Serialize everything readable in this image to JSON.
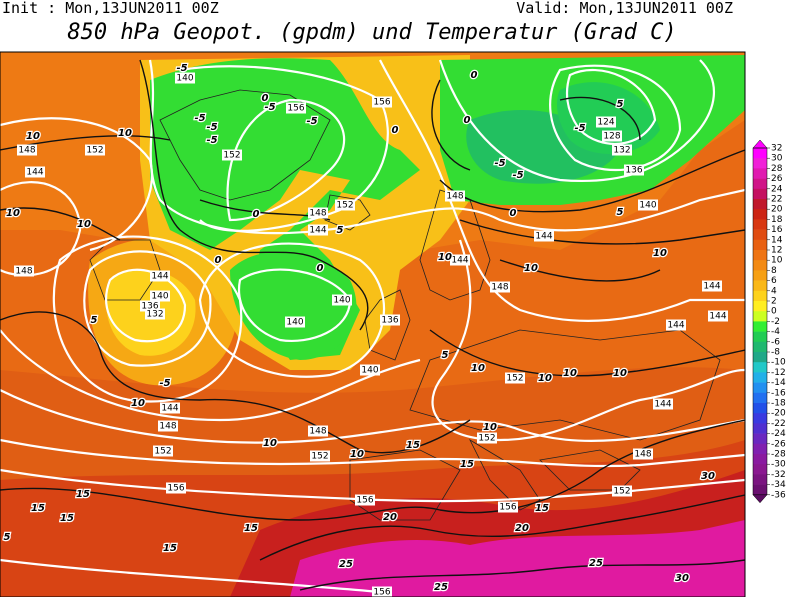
{
  "header": {
    "init": "Init : Mon,13JUN2011 00Z",
    "valid": "Valid: Mon,13JUN2011 00Z",
    "title": "850 hPa Geopot. (gpdm) und Temperatur (Grad C)"
  },
  "colorbar": {
    "labels": [
      32,
      30,
      28,
      26,
      24,
      22,
      20,
      18,
      16,
      14,
      12,
      10,
      8,
      6,
      4,
      2,
      0,
      -2,
      -4,
      -6,
      -8,
      -10,
      -12,
      -14,
      -16,
      -18,
      -20,
      -22,
      -24,
      -26,
      -28,
      -30,
      -32,
      -34,
      -36
    ],
    "colors": [
      "#ff00ff",
      "#f020d8",
      "#e01ab0",
      "#d01488",
      "#c41060",
      "#c0182c",
      "#cc2414",
      "#d83812",
      "#e04c12",
      "#e86012",
      "#ee7414",
      "#f28a14",
      "#f6a014",
      "#fab818",
      "#fdd21c",
      "#ffee22",
      "#ccff22",
      "#33ee33",
      "#22cc55",
      "#20b870",
      "#20a888",
      "#22c8c8",
      "#22b0e8",
      "#2290f0",
      "#2270f0",
      "#2250e8",
      "#3a3ae0",
      "#5030d0",
      "#6a28c0",
      "#8020b0",
      "#8a1aa0",
      "#8a1890",
      "#7a1480",
      "#6a1070"
    ],
    "top_color": "#ff00ff",
    "bottom_color": "#5a0c60"
  },
  "contour_labels": {
    "geopotential": [
      "140",
      "156",
      "156",
      "124",
      "128",
      "132",
      "136",
      "152",
      "148",
      "152",
      "144",
      "148",
      "152",
      "144",
      "148",
      "140",
      "144",
      "144",
      "148",
      "144",
      "140",
      "136",
      "132",
      "140",
      "140",
      "136",
      "148",
      "144",
      "144",
      "144",
      "140",
      "152",
      "144",
      "148",
      "148",
      "144",
      "152",
      "152",
      "152",
      "148",
      "156",
      "156",
      "152",
      "156",
      "156"
    ],
    "temperature": [
      "-5",
      "-5",
      "-5",
      "-5",
      "0",
      "-5",
      "-5",
      "0",
      "0",
      "0",
      "-5",
      "5",
      "-5",
      "-5",
      "0",
      "5",
      "0",
      "0",
      "0",
      "5",
      "10",
      "10",
      "10",
      "10",
      "5",
      "-5",
      "10",
      "10",
      "10",
      "5",
      "10",
      "10",
      "10",
      "10",
      "10",
      "10",
      "15",
      "10",
      "15",
      "15",
      "15",
      "15",
      "15",
      "15",
      "20",
      "20",
      "25",
      "25",
      "30",
      "30",
      "25",
      "5",
      "10",
      "15"
    ]
  }
}
